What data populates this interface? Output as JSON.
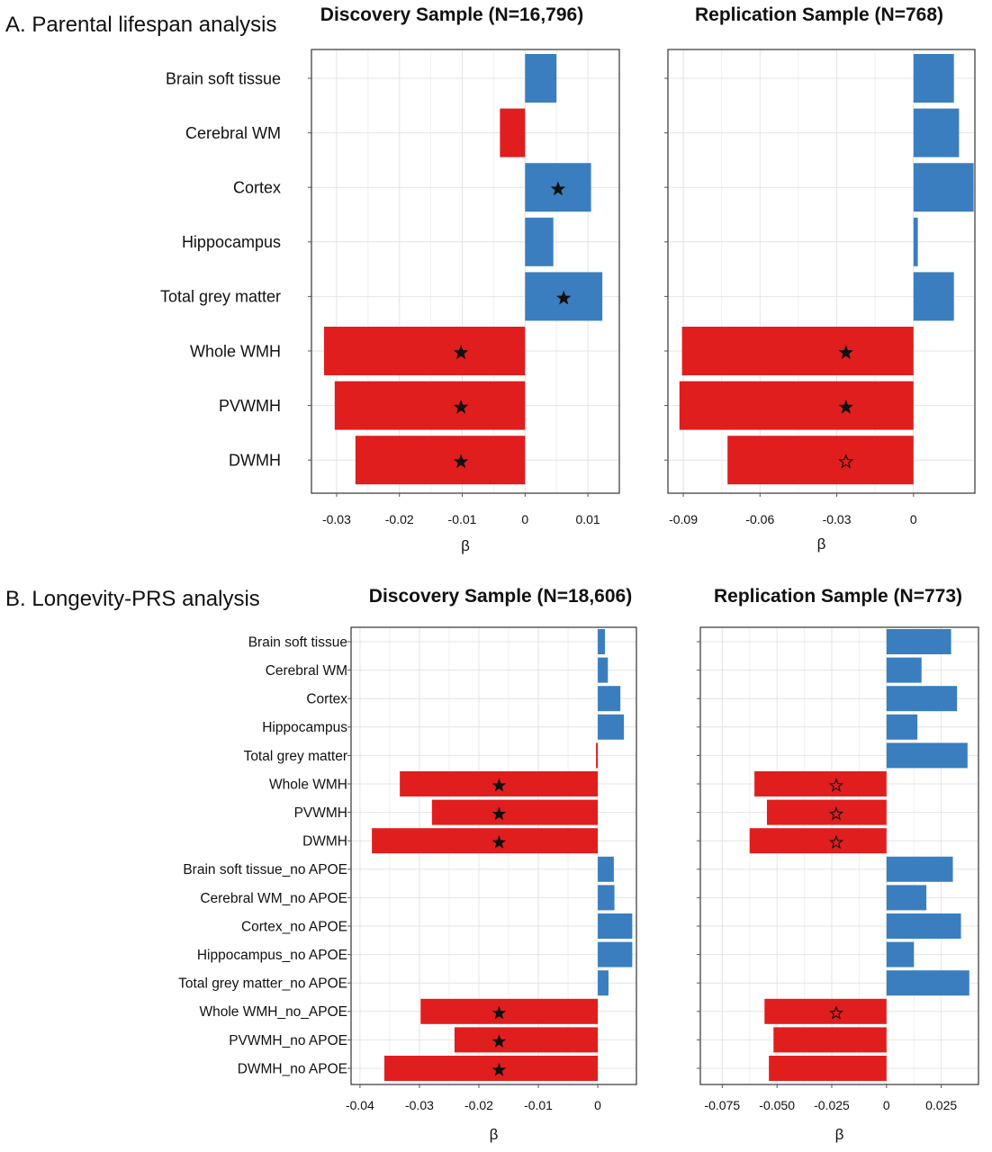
{
  "sections": {
    "a_title": "A. Parental lifespan analysis",
    "b_title": "B. Longevity-PRS analysis"
  },
  "colors": {
    "positive": "#3a7ebf",
    "negative": "#e01e1e",
    "grid": "#e4e4e4",
    "frame": "#333333"
  },
  "legend_note": "filled star and outlined star markers on bars",
  "chart_data": [
    {
      "id": "A-discovery",
      "type": "bar",
      "orientation": "horizontal",
      "title": "Discovery Sample (N=16,796)",
      "xlabel": "β",
      "xlim": [
        -0.034,
        0.015
      ],
      "xticks": [
        -0.03,
        -0.02,
        -0.01,
        0,
        0.01
      ],
      "xtick_labels": [
        "-0.03",
        "-0.02",
        "-0.01",
        "0",
        "0.01"
      ],
      "categories": [
        "Brain soft tissue",
        "Cerebral WM",
        "Cortex",
        "Hippocampus",
        "Total grey matter",
        "Whole WMH",
        "PVWMH",
        "DWMH"
      ],
      "values": [
        0.005,
        -0.004,
        0.0105,
        0.0045,
        0.0123,
        -0.032,
        -0.0303,
        -0.027
      ],
      "markers": [
        "",
        "",
        "filled",
        "",
        "filled",
        "filled",
        "filled",
        "filled"
      ],
      "grid": true
    },
    {
      "id": "A-replication",
      "type": "bar",
      "orientation": "horizontal",
      "title": "Replication Sample (N=768)",
      "xlabel": "β",
      "xlim": [
        -0.096,
        0.024
      ],
      "xticks": [
        -0.09,
        -0.06,
        -0.03,
        0
      ],
      "xtick_labels": [
        "-0.09",
        "-0.06",
        "-0.03",
        "0"
      ],
      "categories": [
        "Brain soft tissue",
        "Cerebral WM",
        "Cortex",
        "Hippocampus",
        "Total grey matter",
        "Whole WMH",
        "PVWMH",
        "DWMH"
      ],
      "values": [
        0.0158,
        0.0178,
        0.0235,
        0.0017,
        0.0158,
        -0.0905,
        -0.0915,
        -0.0727
      ],
      "markers": [
        "",
        "",
        "",
        "",
        "",
        "filled",
        "filled",
        "outline"
      ],
      "grid": true
    },
    {
      "id": "B-discovery",
      "type": "bar",
      "orientation": "horizontal",
      "title": "Discovery Sample (N=18,606)",
      "xlabel": "β",
      "xlim": [
        -0.0415,
        0.0065
      ],
      "xticks": [
        -0.04,
        -0.03,
        -0.02,
        -0.01,
        0
      ],
      "xtick_labels": [
        "-0.04",
        "-0.03",
        "-0.02",
        "-0.01",
        "0"
      ],
      "categories": [
        "Brain soft tissue",
        "Cerebral WM",
        "Cortex",
        "Hippocampus",
        "Total grey matter",
        "Whole WMH",
        "PVWMH",
        "DWMH",
        "Brain soft tissue_no APOE",
        "Cerebral WM_no APOE",
        "Cortex_no APOE",
        "Hippocampus_no APOE",
        "Total grey matter_no APOE",
        "Whole WMH_no_APOE",
        "PVWMH_no APOE",
        "DWMH_no APOE"
      ],
      "values": [
        0.0012,
        0.0017,
        0.0038,
        0.0044,
        -0.0003,
        -0.0333,
        -0.0279,
        -0.038,
        0.0027,
        0.0028,
        0.0058,
        0.0058,
        0.0018,
        -0.0298,
        -0.0241,
        -0.0359
      ],
      "markers": [
        "",
        "",
        "",
        "",
        "",
        "filled",
        "filled",
        "filled",
        "",
        "",
        "",
        "",
        "",
        "filled",
        "filled",
        "filled"
      ],
      "grid": true
    },
    {
      "id": "B-replication",
      "type": "bar",
      "orientation": "horizontal",
      "title": "Replication Sample (N=773)",
      "xlabel": "β",
      "xlim": [
        -0.085,
        0.042
      ],
      "xticks": [
        -0.075,
        -0.05,
        -0.025,
        0,
        0.025
      ],
      "xtick_labels": [
        "-0.075",
        "-0.050",
        "-0.025",
        "0",
        "0.025"
      ],
      "categories": [
        "Brain soft tissue",
        "Cerebral WM",
        "Cortex",
        "Hippocampus",
        "Total grey matter",
        "Whole WMH",
        "PVWMH",
        "DWMH",
        "Brain soft tissue_no APOE",
        "Cerebral WM_no APOE",
        "Cortex_no APOE",
        "Hippocampus_no APOE",
        "Total grey matter_no APOE",
        "Whole WMH_no_APOE",
        "PVWMH_no APOE",
        "DWMH_no APOE"
      ],
      "values": [
        0.0295,
        0.016,
        0.0322,
        0.0141,
        0.037,
        -0.0603,
        -0.0546,
        -0.0625,
        0.0303,
        0.0182,
        0.034,
        0.0125,
        0.0378,
        -0.0557,
        -0.0516,
        -0.0537
      ],
      "markers": [
        "",
        "",
        "",
        "",
        "",
        "outline",
        "outline",
        "outline",
        "",
        "",
        "",
        "",
        "",
        "outline",
        "",
        ""
      ],
      "grid": true
    }
  ]
}
